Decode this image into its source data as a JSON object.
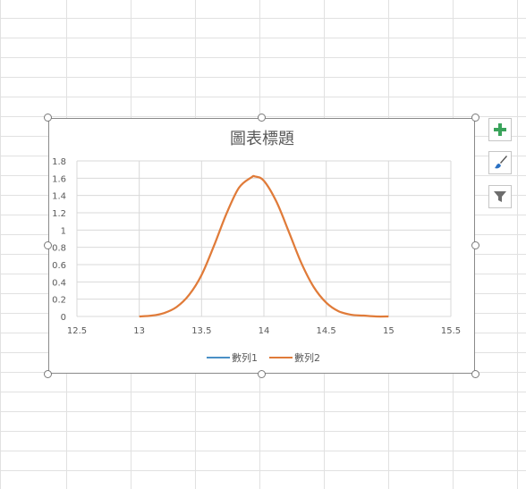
{
  "colors": {
    "gridline": "#d9d9d9",
    "series1": "#4a90c6",
    "series2": "#e07b39",
    "text": "#595959",
    "plus_icon": "#3aa35b",
    "brush_icon": "#2a70c2"
  },
  "icons": {
    "add_elements": "plus-icon",
    "styles": "paintbrush-icon",
    "filter": "funnel-icon"
  },
  "chart_data": {
    "type": "scatter",
    "title": "圖表標題",
    "xlabel": "",
    "ylabel": "",
    "xlim": [
      12.5,
      15.5
    ],
    "ylim": [
      0,
      1.8
    ],
    "grid": true,
    "legend": "bottom",
    "x_ticks": [
      "12.5",
      "13",
      "13.5",
      "14",
      "14.5",
      "15",
      "15.5"
    ],
    "y_ticks": [
      "0",
      "0.2",
      "0.4",
      "0.6",
      "0.8",
      "1",
      "1.2",
      "1.4",
      "1.6",
      "1.8"
    ],
    "series": [
      {
        "name": "數列1",
        "x": [],
        "y": []
      },
      {
        "name": "數列2",
        "x": [
          13.0,
          13.1,
          13.2,
          13.3,
          13.4,
          13.5,
          13.6,
          13.7,
          13.8,
          13.9,
          13.93,
          14.0,
          14.1,
          14.2,
          14.3,
          14.4,
          14.5,
          14.6,
          14.7,
          14.8,
          14.9,
          15.0
        ],
        "y": [
          0.0,
          0.01,
          0.04,
          0.11,
          0.25,
          0.48,
          0.82,
          1.19,
          1.49,
          1.61,
          1.62,
          1.57,
          1.33,
          0.98,
          0.62,
          0.34,
          0.16,
          0.06,
          0.02,
          0.01,
          0.0,
          0.0
        ]
      }
    ]
  }
}
